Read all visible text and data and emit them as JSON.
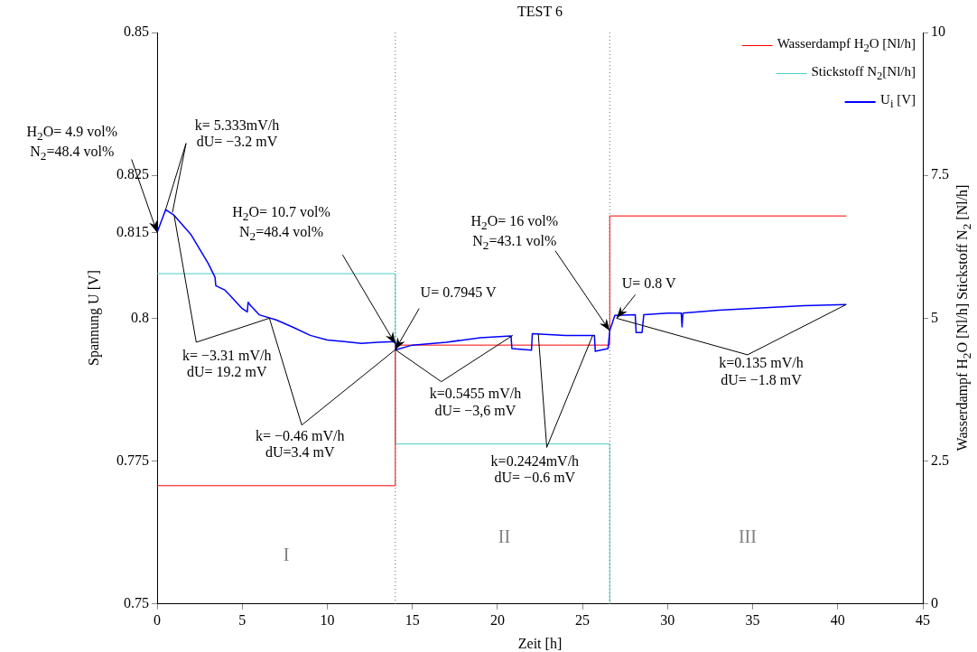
{
  "chart_data": {
    "type": "line",
    "title": "TEST 6",
    "xlabel": "Zeit [h]",
    "ylabel": "Spannung U [V]",
    "y2label": "Wasserdampf H$_{2}$O [Nl/h] Stickstoff N$_{2}$ [Nl/h]",
    "xlim": [
      0,
      45
    ],
    "xticks": [
      0,
      5,
      10,
      15,
      20,
      25,
      30,
      35,
      40,
      45
    ],
    "ylim": [
      0.75,
      0.85
    ],
    "yticks": [
      0.75,
      0.775,
      0.8,
      0.815,
      0.825,
      0.85
    ],
    "y2lim": [
      0,
      10
    ],
    "y2ticks": [
      0,
      2.5,
      5,
      7.5,
      10
    ],
    "grid": false,
    "legend": "top right",
    "marker": "none",
    "series": [
      {
        "name": "Wasserdampf H$_{2}$O [Nl/h]",
        "type": "step",
        "axis": "y2",
        "color": "#ff0000",
        "x": [
          0,
          14,
          26.6,
          40.5
        ],
        "values": [
          2.07,
          4.53,
          6.79,
          6.79
        ]
      },
      {
        "name": "Stickstoff N$_{2}$[Nl/h]",
        "type": "step",
        "axis": "y2",
        "color": "#4ecccc",
        "x": [
          0,
          14,
          26.6
        ],
        "values": [
          5.78,
          2.8,
          0
        ]
      },
      {
        "name": "U$_{i}$ [V]",
        "color": "#0000ff",
        "x": [
          0,
          0.5,
          1,
          2,
          3,
          3.4,
          3.45,
          4,
          5,
          5.3,
          5.35,
          5.5,
          6,
          7,
          8,
          9,
          10,
          11,
          12,
          13,
          14,
          14.05,
          15,
          17,
          19,
          20.8,
          20.85,
          22,
          22.05,
          24,
          25.7,
          25.75,
          26.5,
          26.6,
          26.9,
          28.1,
          28.15,
          28.5,
          28.6,
          30,
          30.8,
          30.85,
          30.9,
          33,
          36,
          38,
          40.5
        ],
        "values": [
          0.815,
          0.819,
          0.818,
          0.8146,
          0.8096,
          0.8072,
          0.8057,
          0.8049,
          0.8017,
          0.8011,
          0.8028,
          0.8022,
          0.8006,
          0.7997,
          0.7984,
          0.797,
          0.7962,
          0.7959,
          0.7956,
          0.7958,
          0.7959,
          0.7945,
          0.7953,
          0.7958,
          0.7966,
          0.7969,
          0.7947,
          0.7944,
          0.7973,
          0.797,
          0.797,
          0.7942,
          0.7947,
          0.7978,
          0.8005,
          0.8006,
          0.7975,
          0.7975,
          0.8006,
          0.8009,
          0.8009,
          0.7985,
          0.8009,
          0.8014,
          0.8019,
          0.8022,
          0.8024
        ]
      }
    ],
    "ref_lines": [
      {
        "axis": "x",
        "value": 14,
        "color": "#666666",
        "line_style": "dotted"
      },
      {
        "axis": "x",
        "value": 26.6,
        "color": "#666666",
        "line_style": "dotted"
      }
    ],
    "annotations": [
      {
        "text": "H$_{2}$O= 4.9 vol%\nN$_{2}$=48.4 vol%",
        "x": 0,
        "y": 0.815
      },
      {
        "text": "k= 5.333mV/h\ndU= −3.2 mV",
        "x": 0.5,
        "y": 0.819
      },
      {
        "text": "H$_{2}$O= 10.7 vol%\nN$_{2}$=48.4 vol%",
        "x": 14,
        "y": 0.7955
      },
      {
        "text": "U= 0.7945 V",
        "x": 14,
        "y": 0.7945
      },
      {
        "text": "k= −3.31 mV/h\ndU= 19.2 mV",
        "x": 1,
        "y": 0.818
      },
      {
        "text": "k= −0.46 mV/h\ndU=3.4 mV",
        "x": 6.6,
        "y": 0.8
      },
      {
        "text": "k=0.5455 mV/h\ndU= −3,6 mV",
        "x": 20.9,
        "y": 0.797
      },
      {
        "text": "k=0.2424mV/h\ndU= −0.6 mV",
        "x": 22.4,
        "y": 0.7973
      },
      {
        "text": "H$_{2}$O= 16 vol%\nN$_{2}$=43.1 vol%",
        "x": 26.6,
        "y": 0.7978
      },
      {
        "text": "U= 0.8 V",
        "x": 27,
        "y": 0.8
      },
      {
        "text": "k=0.135 mV/h\ndU= −1.8 mV",
        "x": 40.5,
        "y": 0.8024
      },
      "I",
      "II",
      "III"
    ]
  }
}
